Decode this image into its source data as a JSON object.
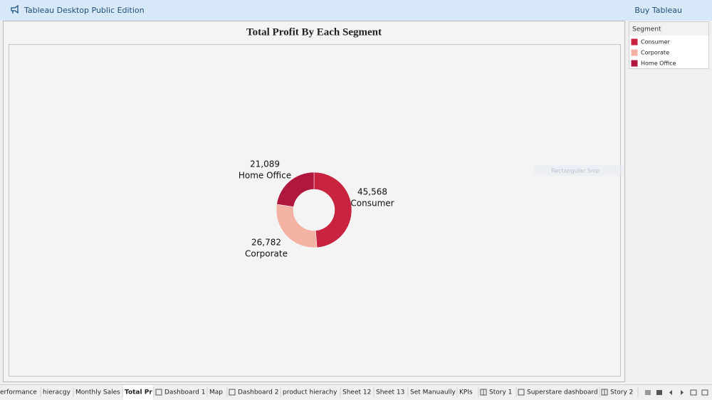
{
  "header": {
    "app_title": "Tableau Desktop Public Edition",
    "buy_link": "Buy Tableau"
  },
  "chart_data": {
    "type": "pie",
    "title": "Total Profit By Each Segment",
    "categories": [
      "Consumer",
      "Corporate",
      "Home Office"
    ],
    "values": [
      45568,
      26782,
      21089
    ],
    "value_labels": [
      "45,568",
      "26,782",
      "21,089"
    ],
    "colors": [
      "#c9243f",
      "#f4b2a5",
      "#b0173f"
    ],
    "legend_title": "Segment"
  },
  "overlay_text": "Rectangular Snip",
  "tabs": [
    "erformance",
    "hieracgy",
    "Monthly Sales",
    "Total Pr",
    "Dashboard 1",
    "Map",
    "Dashboard 2",
    "product hierachy",
    "Sheet 12",
    "Sheet 13",
    "Set Manuaully",
    "KPIs",
    "Story 1",
    "Superstare dashboard",
    "Story 2"
  ]
}
